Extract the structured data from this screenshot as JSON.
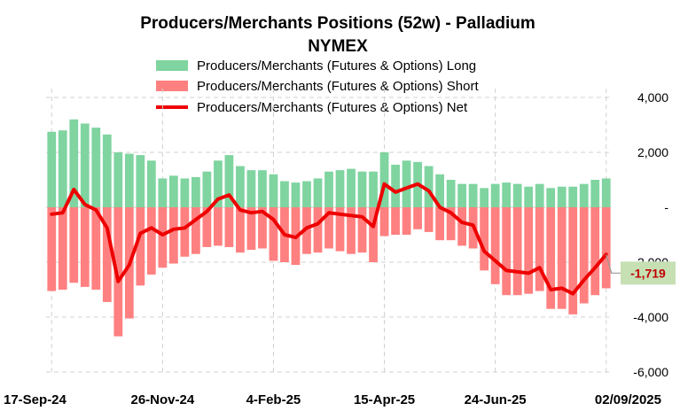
{
  "chart_data": {
    "type": "bar",
    "title": "Producers/Merchants  Positions  (52w) - Palladium",
    "subtitle": "NYMEX",
    "x": [
      "17-Sep-24",
      "24-Sep-24",
      "1-Oct-24",
      "8-Oct-24",
      "15-Oct-24",
      "22-Oct-24",
      "29-Oct-24",
      "5-Nov-24",
      "12-Nov-24",
      "19-Nov-24",
      "26-Nov-24",
      "3-Dec-24",
      "10-Dec-24",
      "17-Dec-24",
      "24-Dec-24",
      "31-Dec-24",
      "7-Jan-25",
      "14-Jan-25",
      "21-Jan-25",
      "28-Jan-25",
      "4-Feb-25",
      "11-Feb-25",
      "18-Feb-25",
      "25-Feb-25",
      "4-Mar-25",
      "11-Mar-25",
      "18-Mar-25",
      "25-Mar-25",
      "1-Apr-25",
      "8-Apr-25",
      "15-Apr-25",
      "22-Apr-25",
      "29-Apr-25",
      "6-May-25",
      "13-May-25",
      "20-May-25",
      "27-May-25",
      "3-Jun-25",
      "10-Jun-25",
      "17-Jun-25",
      "24-Jun-25",
      "1-Jul-25",
      "8-Jul-25",
      "15-Jul-25",
      "22-Jul-25",
      "29-Jul-25",
      "5-Aug-25",
      "12-Aug-25",
      "19-Aug-25",
      "26-Aug-25",
      "02/09/2025"
    ],
    "xtick_labels": [
      "17-Sep-24",
      "26-Nov-24",
      "4-Feb-25",
      "15-Apr-25",
      "24-Jun-25",
      "02/09/2025"
    ],
    "xtick_indices": [
      0,
      10,
      20,
      30,
      40,
      50
    ],
    "ylim": [
      -6000,
      4000
    ],
    "yticks": [
      4000,
      2000,
      0,
      -2000,
      -4000,
      -6000
    ],
    "ytick_labels": [
      "4,000",
      "2,000",
      "-",
      "-2,000",
      "-4,000",
      "-6,000"
    ],
    "grid": true,
    "legend_position": "top-center",
    "series": [
      {
        "name": "Producers/Merchants (Futures & Options)   Long",
        "kind": "bar",
        "color": "#7fd4a0",
        "values": [
          2750,
          2800,
          3200,
          3050,
          2900,
          2650,
          2000,
          1950,
          1900,
          1700,
          1050,
          1150,
          1050,
          1100,
          1300,
          1700,
          1900,
          1500,
          1350,
          1350,
          1200,
          950,
          900,
          950,
          1050,
          1300,
          1350,
          1400,
          1300,
          1300,
          2000,
          1550,
          1700,
          1650,
          1500,
          1200,
          1000,
          850,
          850,
          700,
          850,
          900,
          850,
          750,
          850,
          700,
          750,
          750,
          850,
          1000,
          1050
        ]
      },
      {
        "name": "Producers/Merchants (Futures & Options)   Short",
        "kind": "bar",
        "color": "#ff8080",
        "values": [
          -3050,
          -3000,
          -2750,
          -2900,
          -3000,
          -3450,
          -4700,
          -4050,
          -2850,
          -2450,
          -2200,
          -2050,
          -1800,
          -1700,
          -1450,
          -1400,
          -1450,
          -1650,
          -1550,
          -1500,
          -1950,
          -2000,
          -2100,
          -1700,
          -1650,
          -1500,
          -1600,
          -1700,
          -1650,
          -2000,
          -1050,
          -1000,
          -1000,
          -800,
          -900,
          -1200,
          -1200,
          -1400,
          -1500,
          -2300,
          -2800,
          -3200,
          -3200,
          -3150,
          -3050,
          -3700,
          -3700,
          -3900,
          -3500,
          -3200,
          -2950
        ]
      },
      {
        "name": "Producers/Merchants (Futures & Options)   Net",
        "kind": "line",
        "color": "#ee0000",
        "values": [
          -250,
          -200,
          650,
          100,
          -100,
          -750,
          -2700,
          -2100,
          -950,
          -750,
          -1000,
          -800,
          -750,
          -450,
          -150,
          300,
          450,
          -100,
          -200,
          -150,
          -450,
          -1000,
          -1100,
          -750,
          -600,
          -200,
          -250,
          -300,
          -350,
          -700,
          850,
          550,
          700,
          850,
          600,
          0,
          -200,
          -550,
          -650,
          -1600,
          -1950,
          -2300,
          -2350,
          -2400,
          -2200,
          -3000,
          -2950,
          -3150,
          -2650,
          -2200,
          -1719
        ]
      }
    ],
    "last_value_label": "-1,719",
    "last_value": -1719,
    "last_label_color": "#c00000",
    "last_label_bg": "#c6e0b4"
  }
}
